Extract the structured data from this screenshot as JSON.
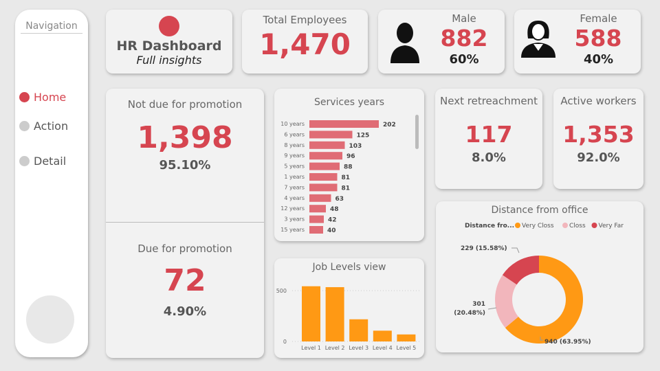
{
  "nav": {
    "title": "Navigation",
    "items": [
      {
        "label": "Home",
        "active": true
      },
      {
        "label": "Action",
        "active": false
      },
      {
        "label": "Detail",
        "active": false
      }
    ]
  },
  "header": {
    "title": "HR Dashboard",
    "subtitle": "Full insights",
    "accent": "#d64550"
  },
  "kpi": {
    "total": {
      "label": "Total Employees",
      "value": "1,470"
    },
    "male": {
      "label": "Male",
      "value": "882",
      "pct": "60%",
      "icon": "male-user-icon"
    },
    "female": {
      "label": "Female",
      "value": "588",
      "pct": "40%",
      "icon": "female-user-icon"
    },
    "not_due": {
      "label": "Not due for promotion",
      "value": "1,398",
      "pct": "95.10%"
    },
    "due": {
      "label": "Due for promotion",
      "value": "72",
      "pct": "4.90%"
    },
    "retire": {
      "label": "Next retreachment",
      "value": "117",
      "pct": "8.0%"
    },
    "active": {
      "label": "Active workers",
      "value": "1,353",
      "pct": "92.0%"
    }
  },
  "chart_data": [
    {
      "type": "bar",
      "orientation": "horizontal",
      "title": "Services years",
      "categories": [
        "10 years",
        "6 years",
        "8 years",
        "9 years",
        "5 years",
        "1 years",
        "7 years",
        "4 years",
        "12 years",
        "3 years",
        "15 years"
      ],
      "values": [
        202,
        125,
        103,
        96,
        88,
        81,
        81,
        63,
        48,
        42,
        40
      ],
      "color": "#e06c75",
      "data_labels": true
    },
    {
      "type": "bar",
      "title": "Job Levels view",
      "categories": [
        "Level 1",
        "Level 2",
        "Level 3",
        "Level 4",
        "Level 5"
      ],
      "values": [
        543,
        534,
        218,
        106,
        69
      ],
      "yticks": [
        0,
        500
      ],
      "ylim": [
        0,
        600
      ],
      "color": "#ff9914",
      "grid": true
    },
    {
      "type": "pie",
      "donut": true,
      "title": "Distance from office",
      "legend_title": "Distance fro...",
      "legend_position": "top",
      "slices": [
        {
          "name": "Very Closs",
          "value": 940,
          "label": "940 (63.95%)",
          "color": "#ff9914"
        },
        {
          "name": "Closs",
          "value": 301,
          "label": "301 (20.48%)",
          "label_line1": "301",
          "label_line2": "(20.48%)",
          "color": "#f2b6bc"
        },
        {
          "name": "Very Far",
          "value": 229,
          "label": "229 (15.58%)",
          "color": "#d64550"
        }
      ]
    }
  ]
}
